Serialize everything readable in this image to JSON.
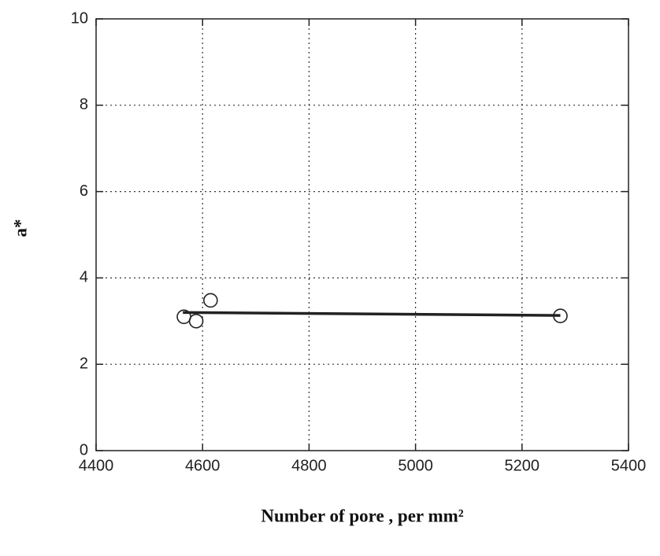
{
  "chart_data": {
    "type": "scatter",
    "xlabel": "Number of pore , per mm²",
    "ylabel": "a*",
    "x": [
      4565,
      4588,
      4615,
      5272
    ],
    "values": [
      3.1,
      3.0,
      3.48,
      3.12
    ],
    "marker_color": "#222222",
    "fit_line": {
      "x": [
        4563,
        5272
      ],
      "values": [
        3.2,
        3.13
      ],
      "color": "#222222"
    },
    "xlim": [
      4400,
      5400
    ],
    "xticks": [
      4400,
      4600,
      4800,
      5000,
      5200,
      5400
    ],
    "ylim": [
      0,
      10
    ],
    "yticks": [
      0,
      2,
      4,
      6,
      8,
      10
    ],
    "grid": true
  }
}
